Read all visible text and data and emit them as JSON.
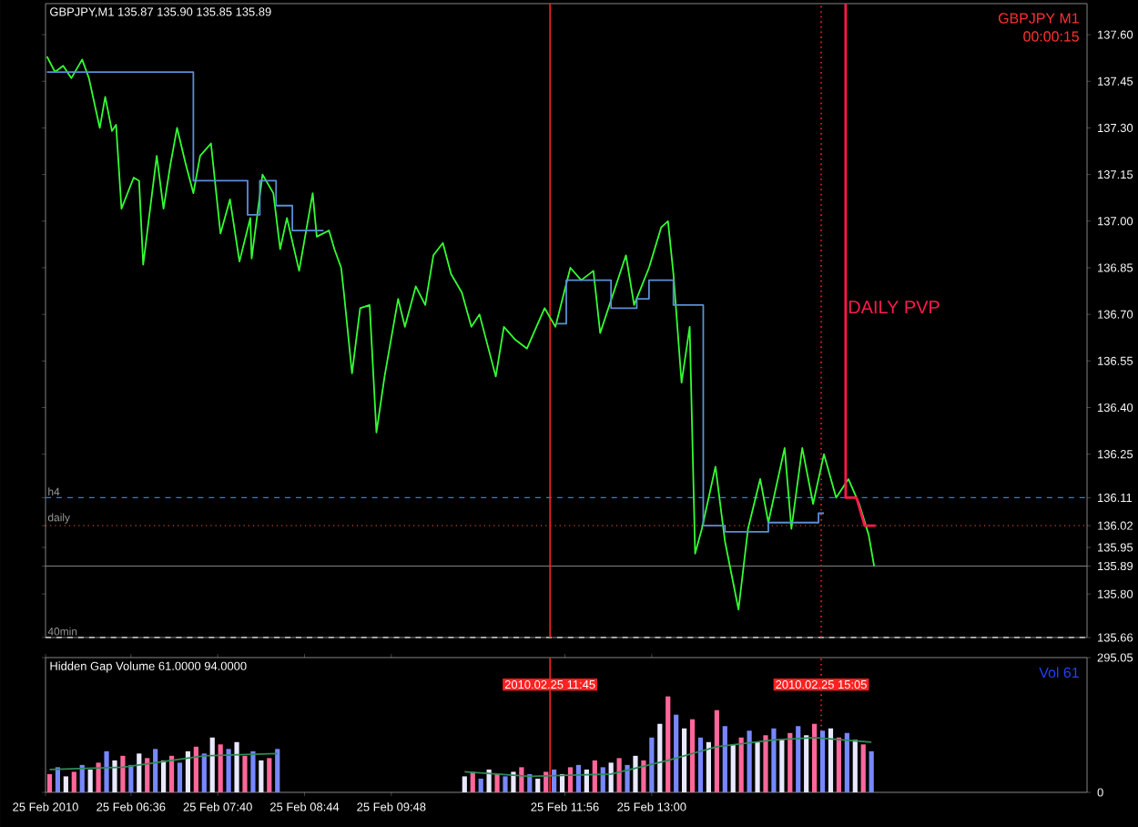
{
  "chart_data": [
    {
      "type": "line",
      "title": "GBPJPY,M1  135.87 135.90 135.85 135.89",
      "annotations": [
        "GBPJPY  M1",
        "00:00:15"
      ],
      "xlim": [
        "2010-02-25T05:33",
        "2010-02-25T18:21"
      ],
      "ylim": [
        135.66,
        137.7
      ],
      "yticks": [
        135.66,
        {
          "value": 135.8,
          "label": "135.80"
        },
        135.89,
        135.95,
        136.02,
        136.11,
        136.25,
        {
          "value": 136.4,
          "label": "136.40"
        },
        136.55,
        {
          "value": 136.7,
          "label": "136.70"
        },
        136.85,
        {
          "value": 137,
          "label": "137.00"
        },
        137.15,
        {
          "value": 137.3,
          "label": "137.30"
        },
        137.45,
        {
          "value": 137.6,
          "label": "137.60"
        }
      ],
      "tick_labels": "y",
      "ref_lines": [
        {
          "axis": "y",
          "value": 136.11,
          "label": "h4",
          "color": "#1e7fff",
          "line_style": "dashed"
        },
        {
          "axis": "y",
          "value": 136.02,
          "label": "daily",
          "color": "#c0502a",
          "line_style": "dotted"
        },
        {
          "axis": "y",
          "value": 135.89,
          "color": "#808080",
          "line_style": "solid"
        },
        {
          "axis": "y",
          "value": 135.66,
          "label": "40min",
          "color": "#e0e0e0",
          "line_style": "dashed"
        },
        {
          "axis": "x",
          "value": "2010-02-25T11:45",
          "color": "#ff2020",
          "line_style": "solid"
        },
        {
          "axis": "x",
          "value": "2010-02-25T15:05",
          "color": "#ff2020",
          "line_style": "dotted"
        }
      ],
      "series": [
        {
          "color": "#33ff33",
          "x": [
            "2010-02-25T05:34",
            "2010-02-25T05:40",
            "2010-02-25T05:46",
            "2010-02-25T05:52",
            "2010-02-25T06:00",
            "2010-02-25T06:05",
            "2010-02-25T06:13",
            "2010-02-25T06:17",
            "2010-02-25T06:22",
            "2010-02-25T06:25",
            "2010-02-25T06:29",
            "2010-02-25T06:38",
            "2010-02-25T06:42",
            "2010-02-25T06:45",
            "2010-02-25T06:55",
            "2010-02-25T07:00",
            "2010-02-25T07:05",
            "2010-02-25T07:10",
            "2010-02-25T07:16",
            "2010-02-25T07:22",
            "2010-02-25T07:27",
            "2010-02-25T07:35",
            "2010-02-25T07:42",
            "2010-02-25T07:49",
            "2010-02-25T07:56",
            "2010-02-25T08:04",
            "2010-02-25T08:05",
            "2010-02-25T08:13",
            "2010-02-25T08:21",
            "2010-02-25T08:26",
            "2010-02-25T08:31",
            "2010-02-25T08:40",
            "2010-02-25T08:50",
            "2010-02-25T08:53",
            "2010-02-25T09:02",
            "2010-02-25T09:06",
            "2010-02-25T09:11",
            "2010-02-25T09:13",
            "2010-02-25T09:19",
            "2010-02-25T09:25",
            "2010-02-25T09:32",
            "2010-02-25T09:37",
            "2010-02-25T09:43",
            "2010-02-25T09:53",
            "2010-02-25T09:58",
            "2010-02-25T10:06",
            "2010-02-25T10:13",
            "2010-02-25T10:19",
            "2010-02-25T10:26",
            "2010-02-25T10:32",
            "2010-02-25T10:40",
            "2010-02-25T10:47",
            "2010-02-25T10:53",
            "2010-02-25T11:05",
            "2010-02-25T11:11",
            "2010-02-25T11:19",
            "2010-02-25T11:28",
            "2010-02-25T11:41",
            "2010-02-25T11:49",
            "2010-02-25T12:00",
            "2010-02-25T12:08",
            "2010-02-25T12:17",
            "2010-02-25T12:22",
            "2010-02-25T12:41",
            "2010-02-25T12:47",
            "2010-02-25T12:58",
            "2010-02-25T13:07",
            "2010-02-25T13:12",
            "2010-02-25T13:16",
            "2010-02-25T13:22",
            "2010-02-25T13:28",
            "2010-02-25T13:32",
            "2010-02-25T13:37",
            "2010-02-25T13:47",
            "2010-02-25T13:54",
            "2010-02-25T14:04",
            "2010-02-25T14:11",
            "2010-02-25T14:20",
            "2010-02-25T14:26",
            "2010-02-25T14:38",
            "2010-02-25T14:43",
            "2010-02-25T14:51",
            "2010-02-25T14:59",
            "2010-02-25T15:07",
            "2010-02-25T15:16",
            "2010-02-25T15:25",
            "2010-02-25T15:33",
            "2010-02-25T15:40",
            "2010-02-25T15:44"
          ],
          "values": [
            137.53,
            137.48,
            137.5,
            137.46,
            137.52,
            137.46,
            137.3,
            137.4,
            137.29,
            137.31,
            137.04,
            137.14,
            137.13,
            136.86,
            137.21,
            137.04,
            137.18,
            137.3,
            137.19,
            137.09,
            137.21,
            137.25,
            136.96,
            137.07,
            136.87,
            137.01,
            136.88,
            137.15,
            137.09,
            136.91,
            137.01,
            136.84,
            137.09,
            136.95,
            136.97,
            136.91,
            136.85,
            136.77,
            136.51,
            136.72,
            136.73,
            136.32,
            136.5,
            136.75,
            136.66,
            136.79,
            136.73,
            136.89,
            136.93,
            136.83,
            136.77,
            136.66,
            136.7,
            136.5,
            136.66,
            136.62,
            136.59,
            136.72,
            136.66,
            136.85,
            136.81,
            136.84,
            136.64,
            136.89,
            136.73,
            136.85,
            136.98,
            137.0,
            136.83,
            136.48,
            136.66,
            135.93,
            136.01,
            136.21,
            135.97,
            135.75,
            136.01,
            136.17,
            136.03,
            136.27,
            136.01,
            136.27,
            136.09,
            136.25,
            136.11,
            136.17,
            136.09,
            135.99,
            135.89
          ]
        },
        {
          "type": "step",
          "color": "#5b8fd6",
          "x": [
            "2010-02-25T05:34",
            "2010-02-25T07:22",
            "2010-02-25T08:02",
            "2010-02-25T08:11",
            "2010-02-25T08:23",
            "2010-02-25T08:35",
            "2010-02-25T08:58",
            "2010-02-25T09:00",
            "2010-02-25T11:49",
            "2010-02-25T11:57",
            "2010-02-25T12:30",
            "2010-02-25T12:49",
            "2010-02-25T12:58",
            "2010-02-25T13:16",
            "2010-02-25T13:38",
            "2010-02-25T13:54",
            "2010-02-25T14:26",
            "2010-02-25T15:03",
            "2010-02-25T15:07"
          ],
          "values": [
            137.48,
            137.13,
            137.02,
            137.13,
            137.05,
            136.97,
            136.97,
            null,
            136.67,
            136.81,
            136.72,
            136.75,
            136.81,
            136.73,
            136.02,
            136.0,
            136.03,
            136.06,
            136.06
          ]
        },
        {
          "name": "DAILY PVP",
          "color": "#ff1a4a",
          "x": [
            "2010-02-25T15:23",
            "2010-02-25T15:23",
            "2010-02-25T15:31",
            "2010-02-25T15:37",
            "2010-02-25T15:45"
          ],
          "values": [
            137.7,
            136.11,
            136.11,
            136.02,
            136.02
          ]
        }
      ]
    },
    {
      "type": "bar",
      "title": "Hidden Gap Volume 61.0000 94.0000",
      "annotations": [
        "Vol  61"
      ],
      "xlim": [
        "2010-02-25T05:33",
        "2010-02-25T18:21"
      ],
      "ylim": [
        0,
        295.05
      ],
      "yticks": [
        0,
        295.05
      ],
      "xticks": [
        {
          "value": "2010-02-25T05:33",
          "label": "25 Feb 2010"
        },
        {
          "value": "2010-02-25T06:36",
          "label": "25 Feb 06:36"
        },
        {
          "value": "2010-02-25T07:40",
          "label": "25 Feb 07:40"
        },
        {
          "value": "2010-02-25T08:44",
          "label": "25 Feb 08:44"
        },
        {
          "value": "2010-02-25T09:48",
          "label": "25 Feb 09:48"
        },
        {
          "value": "2010-02-25T11:56",
          "label": "25 Feb 11:56"
        },
        {
          "value": "2010-02-25T13:00",
          "label": "25 Feb 13:00"
        }
      ],
      "ref_lines": [
        {
          "axis": "x",
          "value": "2010-02-25T11:45",
          "label": "2010.02.25 11:45",
          "color": "#ff2020",
          "line_style": "solid"
        },
        {
          "axis": "x",
          "value": "2010-02-25T15:05",
          "label": "2010.02.25 15:05",
          "color": "#ff2020",
          "line_style": "dotted"
        }
      ],
      "series": [
        {
          "x": [
            "2010-02-25T05:36",
            "2010-02-25T05:42",
            "2010-02-25T05:48",
            "2010-02-25T05:54",
            "2010-02-25T06:00",
            "2010-02-25T06:06",
            "2010-02-25T06:12",
            "2010-02-25T06:18",
            "2010-02-25T06:24",
            "2010-02-25T06:30",
            "2010-02-25T06:36",
            "2010-02-25T06:42",
            "2010-02-25T06:48",
            "2010-02-25T06:54",
            "2010-02-25T07:00",
            "2010-02-25T07:06",
            "2010-02-25T07:12",
            "2010-02-25T07:18",
            "2010-02-25T07:24",
            "2010-02-25T07:30",
            "2010-02-25T07:36",
            "2010-02-25T07:42",
            "2010-02-25T07:48",
            "2010-02-25T07:54",
            "2010-02-25T08:00",
            "2010-02-25T08:06",
            "2010-02-25T08:12",
            "2010-02-25T08:18",
            "2010-02-25T08:24",
            "2010-02-25T10:42",
            "2010-02-25T10:48",
            "2010-02-25T10:54",
            "2010-02-25T11:00",
            "2010-02-25T11:06",
            "2010-02-25T11:12",
            "2010-02-25T11:18",
            "2010-02-25T11:24",
            "2010-02-25T11:30",
            "2010-02-25T11:36",
            "2010-02-25T11:42",
            "2010-02-25T11:48",
            "2010-02-25T11:54",
            "2010-02-25T12:00",
            "2010-02-25T12:06",
            "2010-02-25T12:12",
            "2010-02-25T12:18",
            "2010-02-25T12:24",
            "2010-02-25T12:30",
            "2010-02-25T12:36",
            "2010-02-25T12:42",
            "2010-02-25T12:48",
            "2010-02-25T12:54",
            "2010-02-25T13:00",
            "2010-02-25T13:06",
            "2010-02-25T13:12",
            "2010-02-25T13:18",
            "2010-02-25T13:24",
            "2010-02-25T13:30",
            "2010-02-25T13:36",
            "2010-02-25T13:42",
            "2010-02-25T13:48",
            "2010-02-25T13:54",
            "2010-02-25T14:00",
            "2010-02-25T14:06",
            "2010-02-25T14:12",
            "2010-02-25T14:18",
            "2010-02-25T14:24",
            "2010-02-25T14:30",
            "2010-02-25T14:36",
            "2010-02-25T14:42",
            "2010-02-25T14:48",
            "2010-02-25T14:54",
            "2010-02-25T15:00",
            "2010-02-25T15:06",
            "2010-02-25T15:12",
            "2010-02-25T15:18",
            "2010-02-25T15:24",
            "2010-02-25T15:30",
            "2010-02-25T15:36",
            "2010-02-25T15:42"
          ],
          "values": [
            40,
            55,
            35,
            45,
            60,
            50,
            65,
            90,
            70,
            80,
            60,
            85,
            75,
            95,
            70,
            80,
            65,
            90,
            100,
            85,
            120,
            105,
            95,
            110,
            80,
            90,
            70,
            75,
            95,
            35,
            45,
            30,
            50,
            40,
            35,
            45,
            55,
            40,
            30,
            45,
            50,
            40,
            55,
            60,
            50,
            70,
            55,
            65,
            75,
            60,
            80,
            70,
            120,
            150,
            210,
            170,
            140,
            160,
            120,
            110,
            180,
            145,
            105,
            120,
            135,
            110,
            125,
            140,
            115,
            130,
            145,
            125,
            150,
            135,
            140,
            120,
            130,
            115,
            105,
            90
          ],
          "colors": [
            "#ff6699",
            "#7788ff",
            "#e8e8ff",
            "#ff6699",
            "#7788ff",
            "#e8e8ff",
            "#ff6699",
            "#7788ff",
            "#e8e8ff",
            "#ff6699",
            "#7788ff",
            "#e8e8ff",
            "#ff6699",
            "#7788ff",
            "#e8e8ff",
            "#ff6699",
            "#7788ff",
            "#e8e8ff",
            "#ff6699",
            "#7788ff",
            "#e8e8ff",
            "#ff6699",
            "#7788ff",
            "#e8e8ff",
            "#ff6699",
            "#7788ff",
            "#e8e8ff",
            "#ff6699",
            "#7788ff",
            "#e8e8ff",
            "#ff6699",
            "#7788ff",
            "#e8e8ff",
            "#ff6699",
            "#7788ff",
            "#e8e8ff",
            "#ff6699",
            "#7788ff",
            "#e8e8ff",
            "#ff6699",
            "#7788ff",
            "#e8e8ff",
            "#ff6699",
            "#7788ff",
            "#e8e8ff",
            "#ff6699",
            "#7788ff",
            "#e8e8ff",
            "#ff6699",
            "#7788ff",
            "#e8e8ff",
            "#ff6699",
            "#7788ff",
            "#e8e8ff",
            "#ff6699",
            "#7788ff",
            "#e8e8ff",
            "#ff6699",
            "#7788ff",
            "#e8e8ff",
            "#ff6699",
            "#7788ff",
            "#e8e8ff",
            "#ff6699",
            "#7788ff",
            "#e8e8ff",
            "#ff6699",
            "#7788ff",
            "#e8e8ff",
            "#ff6699",
            "#7788ff",
            "#e8e8ff",
            "#ff6699",
            "#7788ff",
            "#e8e8ff",
            "#ff6699",
            "#7788ff",
            "#e8e8ff",
            "#ff6699",
            "#7788ff"
          ]
        },
        {
          "type": "line",
          "color": "#2e8b57",
          "x": [
            "2010-02-25T05:36",
            "2010-02-25T06:30",
            "2010-02-25T07:30",
            "2010-02-25T08:24",
            "2010-02-25T09:30",
            "2010-02-25T10:42",
            "2010-02-25T11:30",
            "2010-02-25T12:30",
            "2010-02-25T13:12",
            "2010-02-25T13:48",
            "2010-02-25T14:30",
            "2010-02-25T15:00",
            "2010-02-25T15:42"
          ],
          "values": [
            50,
            55,
            80,
            85,
            null,
            45,
            35,
            40,
            70,
            100,
            115,
            120,
            110
          ]
        }
      ]
    }
  ]
}
